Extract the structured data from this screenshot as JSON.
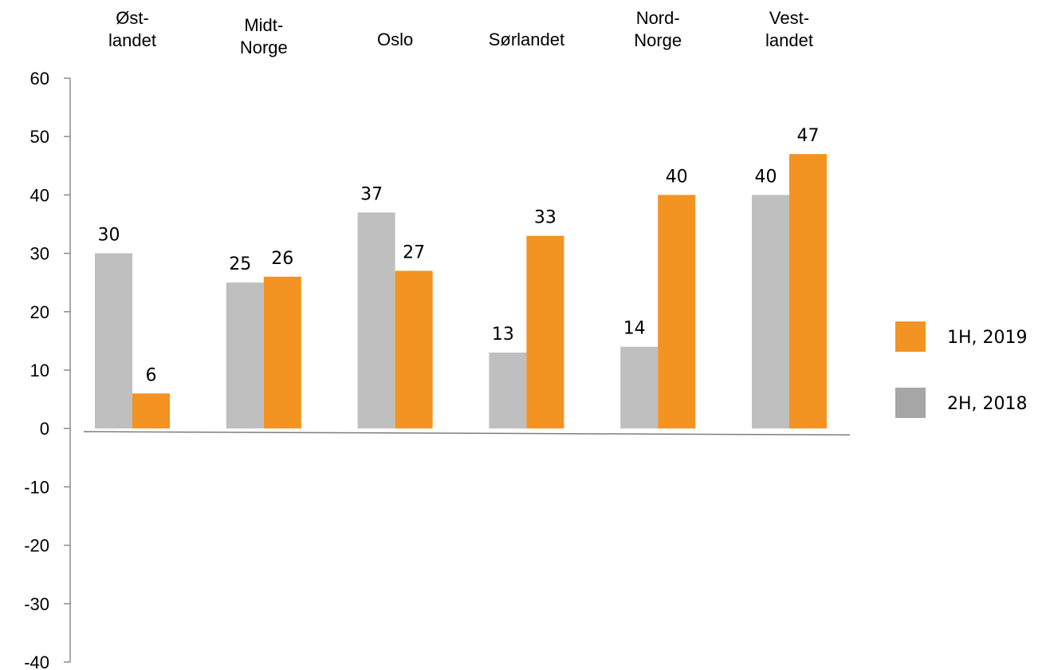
{
  "chart_data": {
    "type": "bar",
    "categories": [
      [
        "Øst-",
        "landet"
      ],
      [
        "Midt-",
        "Norge"
      ],
      [
        "Oslo"
      ],
      [
        "Sørlandet"
      ],
      [
        "Nord-",
        "Norge"
      ],
      [
        "Vest-",
        "landet"
      ]
    ],
    "series": [
      {
        "name": "2H, 2018",
        "values": [
          30,
          25,
          37,
          13,
          14,
          40
        ],
        "color": "#bfbfbf",
        "legend_color": "#a6a6a6"
      },
      {
        "name": "1H, 2019",
        "values": [
          6,
          26,
          27,
          33,
          40,
          47
        ],
        "color": "#f39322",
        "legend_color": "#f39322"
      }
    ],
    "ylim": [
      -40,
      60
    ],
    "yticks": [
      60,
      50,
      40,
      30,
      20,
      10,
      0,
      -10,
      -20,
      -30,
      -40
    ],
    "category_axis_position": "top",
    "legend_position": "right",
    "legend_order": [
      "1H, 2019",
      "2H, 2018"
    ],
    "grid": false,
    "title": "",
    "xlabel": "",
    "ylabel": ""
  }
}
